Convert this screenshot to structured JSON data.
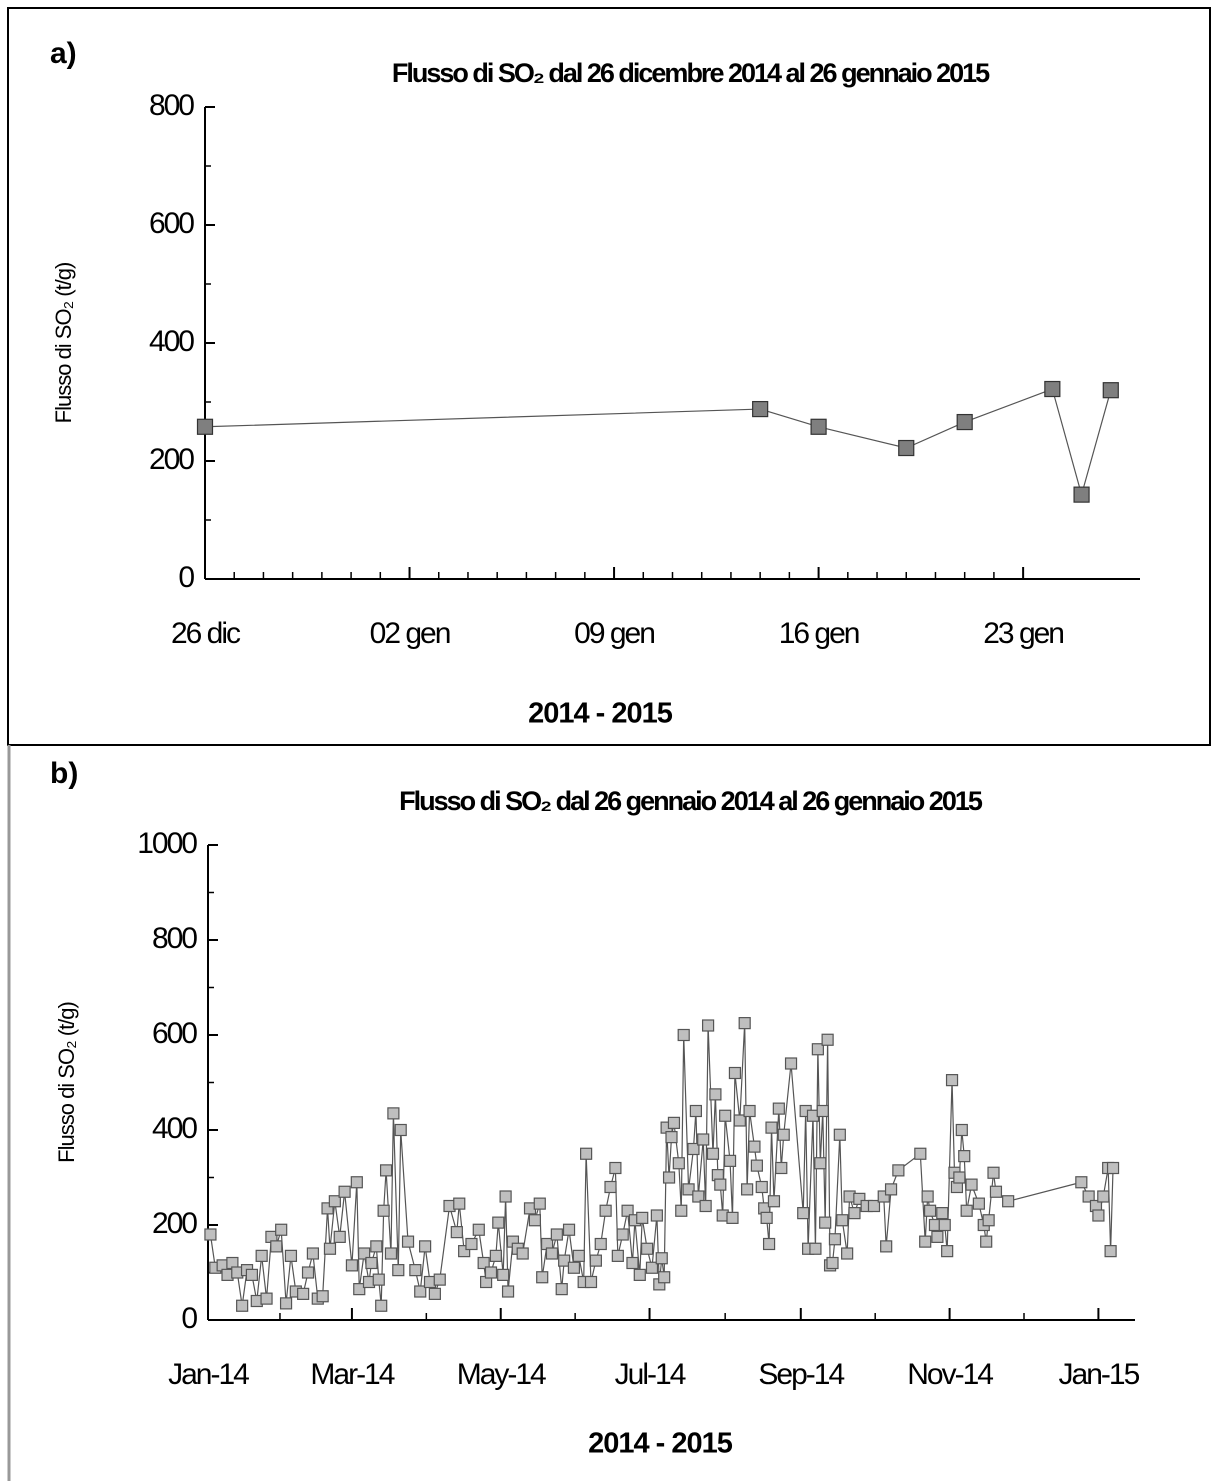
{
  "chart_data": [
    {
      "type": "line",
      "panel_label": "a)",
      "title": "Flusso di SO₂ dal 26 dicembre 2014 al 26 gennaio 2015",
      "x_label": "2014 - 2015",
      "y_label": "Flusso di SO₂ (t/g)",
      "x": [
        "2014-12-26",
        "2015-01-14",
        "2015-01-16",
        "2015-01-19",
        "2015-01-21",
        "2015-01-24",
        "2015-01-25",
        "2015-01-26"
      ],
      "series": [
        {
          "name": "Flusso di SO₂",
          "color": "#7f7f7f",
          "values": [
            258,
            288,
            258,
            222,
            266,
            322,
            143,
            320
          ]
        }
      ],
      "xlim": [
        "2014-12-26",
        "2015-01-27"
      ],
      "xticks": [
        {
          "value": "2014-12-26",
          "label": "26 dic"
        },
        {
          "value": "2015-01-02",
          "label": "02 gen"
        },
        {
          "value": "2015-01-09",
          "label": "09 gen"
        },
        {
          "value": "2015-01-16",
          "label": "16 gen"
        },
        {
          "value": "2015-01-23",
          "label": "23 gen"
        }
      ],
      "ylim": [
        0,
        800
      ],
      "yticks": [
        0,
        200,
        400,
        600,
        800
      ]
    },
    {
      "type": "line",
      "panel_label": "b)",
      "title": "Flusso di SO₂ dal 26 gennaio 2014 al 26 gennaio 2015",
      "x_label": "2014 - 2015",
      "y_label": "Flusso di SO₂ (t/g)",
      "x": [
        "2014-01-02",
        "2014-01-04",
        "2014-01-07",
        "2014-01-09",
        "2014-01-11",
        "2014-01-13",
        "2014-01-15",
        "2014-01-17",
        "2014-01-19",
        "2014-01-21",
        "2014-01-23",
        "2014-01-25",
        "2014-01-27",
        "2014-01-29",
        "2014-01-31",
        "2014-02-02",
        "2014-02-04",
        "2014-02-06",
        "2014-02-09",
        "2014-02-11",
        "2014-02-13",
        "2014-02-15",
        "2014-02-17",
        "2014-02-19",
        "2014-02-20",
        "2014-02-22",
        "2014-02-24",
        "2014-02-26",
        "2014-03-01",
        "2014-03-03",
        "2014-03-04",
        "2014-03-06",
        "2014-03-08",
        "2014-03-09",
        "2014-03-11",
        "2014-03-12",
        "2014-03-13",
        "2014-03-14",
        "2014-03-15",
        "2014-03-17",
        "2014-03-18",
        "2014-03-20",
        "2014-03-21",
        "2014-03-24",
        "2014-03-27",
        "2014-03-29",
        "2014-03-31",
        "2014-04-02",
        "2014-04-04",
        "2014-04-06",
        "2014-04-10",
        "2014-04-13",
        "2014-04-14",
        "2014-04-16",
        "2014-04-19",
        "2014-04-22",
        "2014-04-24",
        "2014-04-25",
        "2014-04-27",
        "2014-04-29",
        "2014-04-30",
        "2014-05-02",
        "2014-05-03",
        "2014-05-04",
        "2014-05-06",
        "2014-05-08",
        "2014-05-10",
        "2014-05-13",
        "2014-05-15",
        "2014-05-17",
        "2014-05-18",
        "2014-05-20",
        "2014-05-22",
        "2014-05-24",
        "2014-05-26",
        "2014-05-27",
        "2014-05-29",
        "2014-05-31",
        "2014-06-02",
        "2014-06-04",
        "2014-06-05",
        "2014-06-07",
        "2014-06-09",
        "2014-06-11",
        "2014-06-13",
        "2014-06-15",
        "2014-06-17",
        "2014-06-18",
        "2014-06-20",
        "2014-06-22",
        "2014-06-24",
        "2014-06-25",
        "2014-06-27",
        "2014-06-28",
        "2014-06-30",
        "2014-07-02",
        "2014-07-04",
        "2014-07-05",
        "2014-07-06",
        "2014-07-07",
        "2014-07-08",
        "2014-07-09",
        "2014-07-10",
        "2014-07-11",
        "2014-07-13",
        "2014-07-14",
        "2014-07-15",
        "2014-07-17",
        "2014-07-19",
        "2014-07-20",
        "2014-07-21",
        "2014-07-23",
        "2014-07-24",
        "2014-07-25",
        "2014-07-27",
        "2014-07-28",
        "2014-07-29",
        "2014-07-30",
        "2014-07-31",
        "2014-08-01",
        "2014-08-03",
        "2014-08-04",
        "2014-08-05",
        "2014-08-07",
        "2014-08-09",
        "2014-08-10",
        "2014-08-11",
        "2014-08-13",
        "2014-08-14",
        "2014-08-16",
        "2014-08-17",
        "2014-08-18",
        "2014-08-19",
        "2014-08-20",
        "2014-08-21",
        "2014-08-23",
        "2014-08-24",
        "2014-08-25",
        "2014-08-28",
        "2014-09-02",
        "2014-09-03",
        "2014-09-04",
        "2014-09-06",
        "2014-09-07",
        "2014-09-08",
        "2014-09-09",
        "2014-09-10",
        "2014-09-11",
        "2014-09-12",
        "2014-09-13",
        "2014-09-14",
        "2014-09-15",
        "2014-09-17",
        "2014-09-18",
        "2014-09-20",
        "2014-09-21",
        "2014-09-23",
        "2014-09-25",
        "2014-09-28",
        "2014-10-01",
        "2014-10-05",
        "2014-10-06",
        "2014-10-08",
        "2014-10-11",
        "2014-10-20",
        "2014-10-22",
        "2014-10-23",
        "2014-10-24",
        "2014-10-26",
        "2014-10-27",
        "2014-10-29",
        "2014-10-30",
        "2014-10-31",
        "2014-11-02",
        "2014-11-03",
        "2014-11-04",
        "2014-11-05",
        "2014-11-06",
        "2014-11-07",
        "2014-11-08",
        "2014-11-10",
        "2014-11-13",
        "2014-11-15",
        "2014-11-16",
        "2014-11-17",
        "2014-11-19",
        "2014-11-20",
        "2014-11-25",
        "2014-12-25",
        "2014-12-28",
        "2014-12-31",
        "2015-01-01",
        "2015-01-03",
        "2015-01-05",
        "2015-01-06",
        "2015-01-07"
      ],
      "series": [
        {
          "name": "Flusso di SO₂",
          "color": "#bfbfbf",
          "values": [
            180,
            110,
            115,
            95,
            120,
            100,
            30,
            105,
            95,
            40,
            135,
            45,
            175,
            155,
            190,
            35,
            135,
            60,
            55,
            100,
            140,
            45,
            50,
            235,
            150,
            250,
            175,
            270,
            115,
            290,
            65,
            140,
            80,
            120,
            155,
            85,
            30,
            230,
            315,
            140,
            435,
            105,
            400,
            165,
            105,
            60,
            155,
            80,
            55,
            85,
            240,
            185,
            245,
            145,
            160,
            190,
            120,
            80,
            100,
            135,
            205,
            95,
            260,
            60,
            165,
            150,
            140,
            235,
            210,
            245,
            90,
            160,
            140,
            180,
            65,
            125,
            190,
            110,
            135,
            80,
            350,
            80,
            125,
            160,
            230,
            280,
            320,
            135,
            180,
            230,
            120,
            210,
            95,
            215,
            150,
            110,
            220,
            75,
            130,
            90,
            405,
            300,
            385,
            415,
            330,
            230,
            600,
            275,
            360,
            440,
            260,
            380,
            240,
            620,
            350,
            475,
            305,
            285,
            220,
            430,
            335,
            215,
            520,
            420,
            625,
            275,
            440,
            365,
            325,
            280,
            235,
            215,
            160,
            405,
            250,
            445,
            320,
            390,
            540,
            225,
            440,
            150,
            430,
            150,
            570,
            330,
            440,
            205,
            590,
            115,
            120,
            170,
            390,
            210,
            140,
            260,
            225,
            255,
            240,
            240,
            260,
            155,
            275,
            315,
            350,
            165,
            260,
            230,
            200,
            175,
            225,
            200,
            145,
            505,
            310,
            280,
            300,
            400,
            345,
            230,
            285,
            245,
            200,
            165,
            210,
            310,
            270,
            250,
            290,
            260,
            240,
            220,
            260,
            320,
            145,
            320
          ]
        }
      ],
      "xlim": [
        "2014-01-01",
        "2015-01-16"
      ],
      "xticks": [
        {
          "value": "2014-01-01",
          "label": "Jan-14"
        },
        {
          "value": "2014-03-01",
          "label": "Mar-14"
        },
        {
          "value": "2014-05-01",
          "label": "May-14"
        },
        {
          "value": "2014-07-01",
          "label": "Jul-14"
        },
        {
          "value": "2014-09-01",
          "label": "Sep-14"
        },
        {
          "value": "2014-11-01",
          "label": "Nov-14"
        },
        {
          "value": "2015-01-01",
          "label": "Jan-15"
        }
      ],
      "ylim": [
        0,
        1000
      ],
      "yticks": [
        0,
        200,
        400,
        600,
        800,
        1000
      ]
    }
  ]
}
